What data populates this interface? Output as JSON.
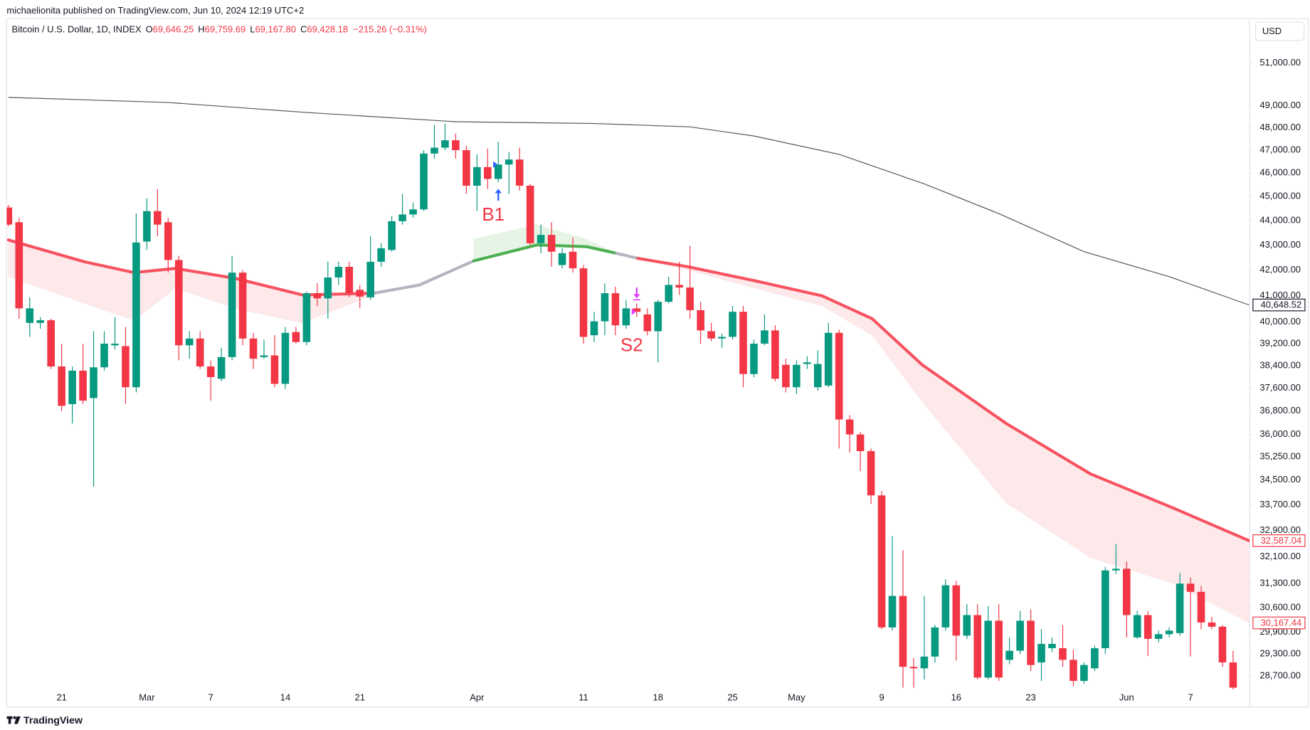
{
  "chart_data": {
    "type": "candlestick",
    "publisher": "michaelionita published on TradingView.com, Jun 10, 2024 12:19 UTC+2",
    "title": "Bitcoin / U.S. Dollar, 1D, INDEX",
    "ohlc_readout": [
      {
        "key": "O",
        "value": "69,646.25"
      },
      {
        "key": "H",
        "value": "69,759.69"
      },
      {
        "key": "L",
        "value": "69,167.80"
      },
      {
        "key": "C",
        "value": "69,428.18"
      }
    ],
    "change": "−215.26 (−0.31%)",
    "currency": "USD",
    "brand": "TradingView",
    "log_scale": true,
    "grid": false,
    "up_color": "#089981",
    "down_color": "#f23645",
    "xlim": [
      -0.16,
      116.55
    ],
    "ylim": [
      28340,
      53170
    ],
    "xticks": [
      {
        "value": 5,
        "label": "21"
      },
      {
        "value": 13,
        "label": "Mar"
      },
      {
        "value": 19,
        "label": "7"
      },
      {
        "value": 26,
        "label": "14"
      },
      {
        "value": 33,
        "label": "21"
      },
      {
        "value": 44,
        "label": "Apr"
      },
      {
        "value": 54,
        "label": "11"
      },
      {
        "value": 61,
        "label": "18"
      },
      {
        "value": 68,
        "label": "25"
      },
      {
        "value": 74,
        "label": "May"
      },
      {
        "value": 82,
        "label": "9"
      },
      {
        "value": 89,
        "label": "16"
      },
      {
        "value": 96,
        "label": "23"
      },
      {
        "value": 105,
        "label": "Jun"
      },
      {
        "value": 111,
        "label": "7"
      }
    ],
    "yticks": [
      {
        "value": 51000,
        "label": "51,000.00"
      },
      {
        "value": 49000,
        "label": "49,000.00"
      },
      {
        "value": 48000,
        "label": "48,000.00"
      },
      {
        "value": 47000,
        "label": "47,000.00"
      },
      {
        "value": 46000,
        "label": "46,000.00"
      },
      {
        "value": 45000,
        "label": "45,000.00"
      },
      {
        "value": 44000,
        "label": "44,000.00"
      },
      {
        "value": 43000,
        "label": "43,000.00"
      },
      {
        "value": 42000,
        "label": "42,000.00"
      },
      {
        "value": 41000,
        "label": "41,000.00"
      },
      {
        "value": 40000,
        "label": "40,000.00"
      },
      {
        "value": 39200,
        "label": "39,200.00"
      },
      {
        "value": 38400,
        "label": "38,400.00"
      },
      {
        "value": 37600,
        "label": "37,600.00"
      },
      {
        "value": 36800,
        "label": "36,800.00"
      },
      {
        "value": 36000,
        "label": "36,000.00"
      },
      {
        "value": 35250,
        "label": "35,250.00"
      },
      {
        "value": 34500,
        "label": "34,500.00"
      },
      {
        "value": 33700,
        "label": "33,700.00"
      },
      {
        "value": 32900,
        "label": "32,900.00"
      },
      {
        "value": 32100,
        "label": "32,100.00"
      },
      {
        "value": 31300,
        "label": "31,300.00"
      },
      {
        "value": 30600,
        "label": "30,600.00"
      },
      {
        "value": 29900,
        "label": "29,900.00"
      },
      {
        "value": 29300,
        "label": "29,300.00"
      },
      {
        "value": 28700,
        "label": "28,700.00"
      }
    ],
    "candles": [
      {
        "open": 44540,
        "high": 44640,
        "low": 43760,
        "close": 43830
      },
      {
        "open": 43930,
        "high": 44110,
        "low": 40130,
        "close": 40520
      },
      {
        "open": 39970,
        "high": 40940,
        "low": 39450,
        "close": 40520
      },
      {
        "open": 39970,
        "high": 40190,
        "low": 39750,
        "close": 40070
      },
      {
        "open": 40070,
        "high": 40130,
        "low": 38280,
        "close": 38370
      },
      {
        "open": 38370,
        "high": 39200,
        "low": 36800,
        "close": 36980
      },
      {
        "open": 37040,
        "high": 38370,
        "low": 36370,
        "close": 38220
      },
      {
        "open": 38220,
        "high": 39200,
        "low": 37040,
        "close": 37160
      },
      {
        "open": 37250,
        "high": 39660,
        "low": 34280,
        "close": 38340
      },
      {
        "open": 38340,
        "high": 39660,
        "low": 38220,
        "close": 39200
      },
      {
        "open": 39140,
        "high": 40190,
        "low": 38990,
        "close": 39200
      },
      {
        "open": 39110,
        "high": 39820,
        "low": 37040,
        "close": 37630
      },
      {
        "open": 37630,
        "high": 44290,
        "low": 37450,
        "close": 43100
      },
      {
        "open": 43140,
        "high": 44930,
        "low": 42800,
        "close": 44390
      },
      {
        "open": 44390,
        "high": 45320,
        "low": 43350,
        "close": 43830
      },
      {
        "open": 43930,
        "high": 44110,
        "low": 41900,
        "close": 42400
      },
      {
        "open": 42400,
        "high": 42570,
        "low": 38590,
        "close": 39140
      },
      {
        "open": 39140,
        "high": 39660,
        "low": 38650,
        "close": 39390
      },
      {
        "open": 39390,
        "high": 39660,
        "low": 38280,
        "close": 38370
      },
      {
        "open": 38370,
        "high": 38590,
        "low": 37160,
        "close": 37990
      },
      {
        "open": 37930,
        "high": 39050,
        "low": 37840,
        "close": 38710
      },
      {
        "open": 38710,
        "high": 42570,
        "low": 38590,
        "close": 41900
      },
      {
        "open": 41900,
        "high": 42000,
        "low": 39140,
        "close": 39390
      },
      {
        "open": 39390,
        "high": 39600,
        "low": 38280,
        "close": 38650
      },
      {
        "open": 38710,
        "high": 39350,
        "low": 38650,
        "close": 38770
      },
      {
        "open": 38770,
        "high": 39510,
        "low": 37630,
        "close": 37750
      },
      {
        "open": 37750,
        "high": 39820,
        "low": 37570,
        "close": 39600
      },
      {
        "open": 39630,
        "high": 39820,
        "low": 39200,
        "close": 39260
      },
      {
        "open": 39260,
        "high": 41160,
        "low": 39140,
        "close": 41100
      },
      {
        "open": 41100,
        "high": 41480,
        "low": 40610,
        "close": 40900
      },
      {
        "open": 40900,
        "high": 42330,
        "low": 40130,
        "close": 41710
      },
      {
        "open": 41710,
        "high": 42330,
        "low": 41420,
        "close": 42130
      },
      {
        "open": 42130,
        "high": 42330,
        "low": 40940,
        "close": 41100
      },
      {
        "open": 41230,
        "high": 41420,
        "low": 40520,
        "close": 40970
      },
      {
        "open": 40940,
        "high": 43350,
        "low": 40840,
        "close": 42330
      },
      {
        "open": 42330,
        "high": 43070,
        "low": 42130,
        "close": 42870
      },
      {
        "open": 42800,
        "high": 44180,
        "low": 42730,
        "close": 43970
      },
      {
        "open": 43970,
        "high": 45110,
        "low": 43830,
        "close": 44250
      },
      {
        "open": 44250,
        "high": 44750,
        "low": 44110,
        "close": 44460
      },
      {
        "open": 44460,
        "high": 47000,
        "low": 44390,
        "close": 46850
      },
      {
        "open": 46850,
        "high": 48120,
        "low": 46630,
        "close": 47110
      },
      {
        "open": 47110,
        "high": 48190,
        "low": 47000,
        "close": 47440
      },
      {
        "open": 47440,
        "high": 47740,
        "low": 46630,
        "close": 47000
      },
      {
        "open": 47000,
        "high": 47190,
        "low": 45110,
        "close": 45460
      },
      {
        "open": 45460,
        "high": 46820,
        "low": 44390,
        "close": 46260
      },
      {
        "open": 46260,
        "high": 47070,
        "low": 45320,
        "close": 45750
      },
      {
        "open": 45750,
        "high": 47370,
        "low": 45610,
        "close": 46370
      },
      {
        "open": 46370,
        "high": 46930,
        "low": 45110,
        "close": 46590
      },
      {
        "open": 46590,
        "high": 47110,
        "low": 45250,
        "close": 45460
      },
      {
        "open": 45460,
        "high": 45540,
        "low": 43000,
        "close": 43070
      },
      {
        "open": 43070,
        "high": 43830,
        "low": 42670,
        "close": 43410
      },
      {
        "open": 43410,
        "high": 43930,
        "low": 42130,
        "close": 42730
      },
      {
        "open": 42200,
        "high": 42870,
        "low": 42070,
        "close": 42670
      },
      {
        "open": 42730,
        "high": 43310,
        "low": 41900,
        "close": 42070
      },
      {
        "open": 42070,
        "high": 42200,
        "low": 39200,
        "close": 39450
      },
      {
        "open": 39510,
        "high": 40390,
        "low": 39260,
        "close": 40030
      },
      {
        "open": 40030,
        "high": 41480,
        "low": 39510,
        "close": 41100
      },
      {
        "open": 41100,
        "high": 41350,
        "low": 39510,
        "close": 39880
      },
      {
        "open": 39880,
        "high": 40840,
        "low": 39750,
        "close": 40520
      },
      {
        "open": 40520,
        "high": 40710,
        "low": 40190,
        "close": 40390
      },
      {
        "open": 40290,
        "high": 40520,
        "low": 39510,
        "close": 39660
      },
      {
        "open": 39660,
        "high": 40840,
        "low": 38520,
        "close": 40770
      },
      {
        "open": 40770,
        "high": 41740,
        "low": 40710,
        "close": 41420
      },
      {
        "open": 41420,
        "high": 42330,
        "low": 41030,
        "close": 41320
      },
      {
        "open": 41320,
        "high": 42970,
        "low": 40130,
        "close": 40450
      },
      {
        "open": 40450,
        "high": 40770,
        "low": 39200,
        "close": 39690
      },
      {
        "open": 39660,
        "high": 39970,
        "low": 39290,
        "close": 39390
      },
      {
        "open": 39390,
        "high": 39570,
        "low": 39050,
        "close": 39450
      },
      {
        "open": 39450,
        "high": 40610,
        "low": 39350,
        "close": 40390
      },
      {
        "open": 40390,
        "high": 40610,
        "low": 37630,
        "close": 38100
      },
      {
        "open": 38100,
        "high": 39350,
        "low": 37990,
        "close": 39200
      },
      {
        "open": 39200,
        "high": 40290,
        "low": 39140,
        "close": 39690
      },
      {
        "open": 39690,
        "high": 39880,
        "low": 37840,
        "close": 37930
      },
      {
        "open": 38430,
        "high": 38650,
        "low": 37450,
        "close": 37630
      },
      {
        "open": 37630,
        "high": 38590,
        "low": 37390,
        "close": 38430
      },
      {
        "open": 38460,
        "high": 38740,
        "low": 38280,
        "close": 38520
      },
      {
        "open": 37630,
        "high": 38950,
        "low": 37510,
        "close": 38460
      },
      {
        "open": 37690,
        "high": 39970,
        "low": 37630,
        "close": 39600
      },
      {
        "open": 39600,
        "high": 39720,
        "low": 35530,
        "close": 36510
      },
      {
        "open": 36510,
        "high": 36660,
        "low": 35390,
        "close": 36000
      },
      {
        "open": 36000,
        "high": 36090,
        "low": 34780,
        "close": 35440
      },
      {
        "open": 35440,
        "high": 35530,
        "low": 33730,
        "close": 34000
      },
      {
        "open": 34000,
        "high": 34140,
        "low": 29990,
        "close": 30040
      },
      {
        "open": 30040,
        "high": 32730,
        "low": 29950,
        "close": 30940
      },
      {
        "open": 30940,
        "high": 32300,
        "low": 28390,
        "close": 28950
      },
      {
        "open": 28950,
        "high": 29190,
        "low": 28390,
        "close": 28910
      },
      {
        "open": 28910,
        "high": 30940,
        "low": 28610,
        "close": 29230
      },
      {
        "open": 29230,
        "high": 30110,
        "low": 29070,
        "close": 30040
      },
      {
        "open": 30040,
        "high": 31430,
        "low": 29950,
        "close": 31250
      },
      {
        "open": 31250,
        "high": 31380,
        "low": 29120,
        "close": 29810
      },
      {
        "open": 29810,
        "high": 30700,
        "low": 29720,
        "close": 30390
      },
      {
        "open": 30390,
        "high": 30700,
        "low": 28610,
        "close": 28660
      },
      {
        "open": 28660,
        "high": 30650,
        "low": 28610,
        "close": 30230
      },
      {
        "open": 30230,
        "high": 30700,
        "low": 28570,
        "close": 28660
      },
      {
        "open": 29140,
        "high": 29760,
        "low": 29020,
        "close": 29390
      },
      {
        "open": 29390,
        "high": 30510,
        "low": 29300,
        "close": 30230
      },
      {
        "open": 30230,
        "high": 30550,
        "low": 28840,
        "close": 29000
      },
      {
        "open": 29070,
        "high": 29990,
        "low": 28570,
        "close": 29580
      },
      {
        "open": 29460,
        "high": 29760,
        "low": 29350,
        "close": 29580
      },
      {
        "open": 29460,
        "high": 30110,
        "low": 28950,
        "close": 29140
      },
      {
        "open": 29140,
        "high": 29420,
        "low": 28430,
        "close": 28570
      },
      {
        "open": 28570,
        "high": 29070,
        "low": 28500,
        "close": 29000
      },
      {
        "open": 28910,
        "high": 29530,
        "low": 28840,
        "close": 29460
      },
      {
        "open": 29460,
        "high": 31790,
        "low": 29300,
        "close": 31690
      },
      {
        "open": 31690,
        "high": 32480,
        "low": 31580,
        "close": 31740
      },
      {
        "open": 31740,
        "high": 31950,
        "low": 29760,
        "close": 30390
      },
      {
        "open": 29760,
        "high": 30510,
        "low": 29720,
        "close": 30390
      },
      {
        "open": 30390,
        "high": 30510,
        "low": 29250,
        "close": 29720
      },
      {
        "open": 29720,
        "high": 29950,
        "low": 29620,
        "close": 29850
      },
      {
        "open": 29850,
        "high": 30040,
        "low": 29760,
        "close": 29950
      },
      {
        "open": 29880,
        "high": 31610,
        "low": 29810,
        "close": 31300
      },
      {
        "open": 31300,
        "high": 31480,
        "low": 29230,
        "close": 31060
      },
      {
        "open": 31060,
        "high": 31230,
        "low": 29990,
        "close": 30180
      },
      {
        "open": 30180,
        "high": 30340,
        "low": 29990,
        "close": 30060
      },
      {
        "open": 30060,
        "high": 30110,
        "low": 28950,
        "close": 29070
      },
      {
        "open": 29070,
        "high": 29390,
        "low": 28340,
        "close": 28390
      }
    ],
    "sma": {
      "color": "#555555",
      "x": [
        0,
        15,
        28,
        42,
        55,
        64,
        70,
        78,
        86,
        93,
        101,
        109,
        116.5
      ],
      "values": [
        49385,
        49150,
        48692,
        48270,
        48192,
        48038,
        47630,
        46815,
        45536,
        44286,
        42733,
        41742,
        40648.52
      ]
    },
    "ema": {
      "x": [
        0,
        7.1,
        11.8,
        15.7,
        21.3,
        27.6,
        34.3,
        38.6,
        43.7,
        49.6,
        54.3,
        57.1,
        59.1,
        63.8,
        70.1,
        76.4,
        81.1,
        85.8,
        93.7,
        101.6,
        109.4,
        116.5
      ],
      "values": [
        43205,
        42333,
        41903,
        42067,
        41677,
        41032,
        41097,
        41419,
        42367,
        43000,
        42933,
        42667,
        42467,
        42133,
        41581,
        41000,
        40129,
        38431,
        36371,
        34694,
        33597,
        32587.04
      ],
      "band": [
        41742,
        40710,
        40065,
        41290,
        40516,
        39969,
        41032,
        null,
        43241,
        43828,
        43241,
        42667,
        42467,
        42000,
        41290,
        40613,
        39508,
        37126,
        33755,
        32075,
        31300,
        30167.44
      ],
      "segment_colors": [
        "#f7525f",
        "#f7525f",
        "#f7525f",
        "#f7525f",
        "#f7525f",
        "#f7525f",
        "#b2b5be",
        "#b2b5be",
        "#4caf50",
        "#4caf50",
        "#4caf50",
        "#b2b5be",
        "#f7525f",
        "#f7525f",
        "#f7525f",
        "#f7525f",
        "#f7525f",
        "#f7525f",
        "#f7525f",
        "#f7525f",
        "#f7525f"
      ],
      "fill_colors": [
        "#fde8ea",
        "#fde8ea",
        "#fde8ea",
        "#fde8ea",
        "#fde8ea",
        "#fde8ea",
        null,
        null,
        "#e6f4e6",
        "#e6f4e6",
        "#e6f4e6",
        null,
        "#fde8ea",
        "#fde8ea",
        "#fde8ea",
        "#fde8ea",
        "#fde8ea",
        "#fde8ea",
        "#fde8ea",
        "#fde8ea",
        "#fde8ea"
      ]
    },
    "signals": [
      {
        "label": "B1",
        "index": 46,
        "direction": "up",
        "color": "#2962ff"
      },
      {
        "label": "S2",
        "index": 59,
        "direction": "down",
        "color": "#e040fb"
      }
    ],
    "price_labels": [
      {
        "value": 40648.52,
        "label": "40,648.52",
        "color": "#131722"
      },
      {
        "value": 32587.04,
        "label": "32,587.04",
        "color": "#f23645"
      },
      {
        "value": 30167.44,
        "label": "30,167.44",
        "color": "#f23645"
      }
    ]
  }
}
